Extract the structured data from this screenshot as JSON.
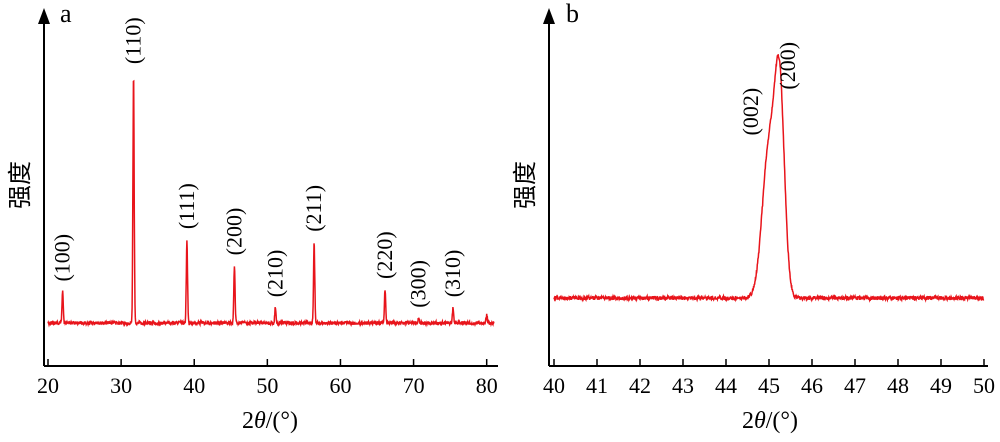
{
  "chart_data": [
    {
      "panel": "a",
      "type": "line",
      "xlabel": "2θ/(°)",
      "ylabel": "强度",
      "xlim": [
        20,
        81
      ],
      "xticks": [
        "20",
        "30",
        "40",
        "50",
        "60",
        "70",
        "80"
      ],
      "line_color": "#e8141b",
      "baseline": 0.0,
      "peaks": [
        {
          "x": 22.0,
          "height": 0.12,
          "label": "(100)"
        },
        {
          "x": 31.7,
          "height": 0.95,
          "label": "(110)"
        },
        {
          "x": 39.0,
          "height": 0.32,
          "label": "(111)"
        },
        {
          "x": 45.5,
          "height": 0.22,
          "label": "(200)"
        },
        {
          "x": 51.1,
          "height": 0.06,
          "label": "(210)"
        },
        {
          "x": 56.4,
          "height": 0.31,
          "label": "(211)"
        },
        {
          "x": 66.1,
          "height": 0.13,
          "label": "(220)"
        },
        {
          "x": 70.7,
          "height": 0.02,
          "label": "(300)"
        },
        {
          "x": 75.4,
          "height": 0.06,
          "label": "(310)"
        },
        {
          "x": 80.0,
          "height": 0.03,
          "label": ""
        }
      ]
    },
    {
      "panel": "b",
      "type": "line",
      "xlabel": "2θ/(°)",
      "ylabel": "强度",
      "xlim": [
        40,
        50
      ],
      "xticks": [
        "40",
        "41",
        "42",
        "43",
        "44",
        "45",
        "46",
        "47",
        "48",
        "49",
        "50"
      ],
      "line_color": "#e8141b",
      "baseline": 0.0,
      "peaks": [
        {
          "x": 45.0,
          "height": 0.55,
          "label": "(002)"
        },
        {
          "x": 45.25,
          "height": 0.72,
          "label": "(200)"
        }
      ]
    }
  ]
}
